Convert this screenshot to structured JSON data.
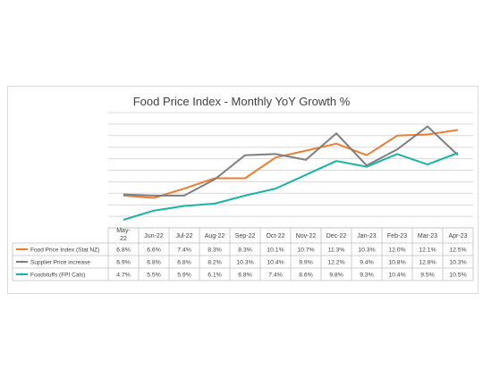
{
  "chart_data": {
    "type": "line",
    "title": "Food Price Index - Monthly YoY Growth %",
    "categories": [
      "May-22",
      "Jun-22",
      "Jul-22",
      "Aug-22",
      "Sep-22",
      "Oct-22",
      "Nov-22",
      "Dec-22",
      "Jan-23",
      "Feb-23",
      "Mar-23",
      "Apr-23"
    ],
    "series": [
      {
        "name": "Food Price Index (Stat NZ)",
        "color": "#ed7d31",
        "values": [
          6.8,
          6.6,
          7.4,
          8.3,
          8.3,
          10.1,
          10.7,
          11.3,
          10.3,
          12.0,
          12.1,
          12.5
        ],
        "labels": [
          "6.8%",
          "6.6%",
          "7.4%",
          "8.3%",
          "8.3%",
          "10.1%",
          "10.7%",
          "11.3%",
          "10.3%",
          "12.0%",
          "12.1%",
          "12.5%"
        ]
      },
      {
        "name": "Supplier Price increase",
        "color": "#7f7f7f",
        "values": [
          6.9,
          6.8,
          6.8,
          8.2,
          10.3,
          10.4,
          9.9,
          12.2,
          9.4,
          10.8,
          12.8,
          10.3
        ],
        "labels": [
          "6.9%",
          "6.8%",
          "6.8%",
          "8.2%",
          "10.3%",
          "10.4%",
          "9.9%",
          "12.2%",
          "9.4%",
          "10.8%",
          "12.8%",
          "10.3%"
        ]
      },
      {
        "name": "Foodstuffs (FPI Cals)",
        "color": "#1bb3a7",
        "values": [
          4.7,
          5.5,
          5.9,
          6.1,
          6.8,
          7.4,
          8.6,
          9.8,
          9.3,
          10.4,
          9.5,
          10.5
        ],
        "labels": [
          "4.7%",
          "5.5%",
          "5.9%",
          "6.1%",
          "6.8%",
          "7.4%",
          "8.6%",
          "9.8%",
          "9.3%",
          "10.4%",
          "9.5%",
          "10.5%"
        ]
      }
    ],
    "ylim": [
      4,
      14
    ],
    "grid": true,
    "legend": "data table"
  }
}
